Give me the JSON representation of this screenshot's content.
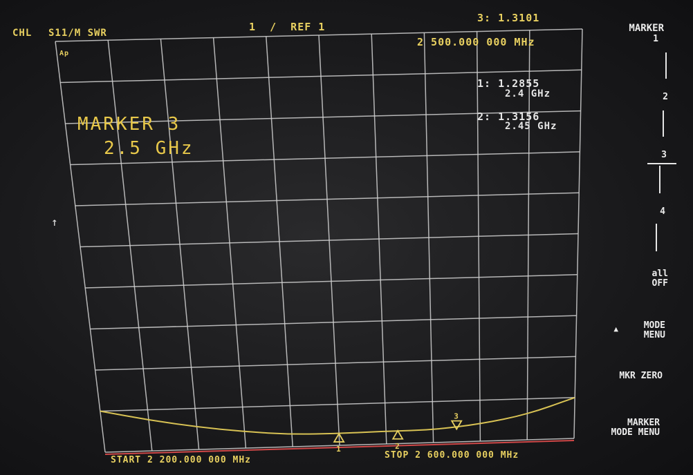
{
  "header": {
    "channel": "CHL",
    "measurement": "S11/M SWR",
    "scale": "1  /  REF 1",
    "ap": "Ap",
    "active_marker": "3: 1.3101",
    "active_marker_freq": "2 500.000 000 MHz"
  },
  "markers_readout": [
    {
      "label": "1: 1.2855",
      "freq": "2.4 GHz"
    },
    {
      "label": "2: 1.3156",
      "freq": "2.45 GHz"
    }
  ],
  "marker_panel": {
    "title": "MARKER 3",
    "value": "2.5 GHz"
  },
  "footer": {
    "start": "START 2 200.000 000 MHz",
    "stop": "STOP 2 600.000 000 MHz"
  },
  "softkeys": {
    "title": "MARKER",
    "keys": [
      "1",
      "2",
      "3",
      "4",
      "all\nOFF",
      "MODE\nMENU",
      "MKR ZERO",
      "MARKER\nMODE MENU"
    ],
    "mode_arrow": "▲"
  },
  "ref_arrow": "↑",
  "marker_flags": [
    "1",
    "2",
    "3"
  ],
  "colors": {
    "trace": "#d8c254",
    "grid": "#d2d2d2",
    "baseline": "#d04848",
    "annotation": "#e8d060"
  },
  "chart_data": {
    "type": "line",
    "xlabel": "",
    "ylabel": "",
    "xlim": [
      2200,
      2600
    ],
    "ylim": [
      1,
      11
    ],
    "grid": true,
    "series": [
      {
        "x": [
          2200,
          2240,
          2280,
          2320,
          2360,
          2400,
          2440,
          2480,
          2520,
          2560,
          2600
        ],
        "values": [
          2.0,
          1.75,
          1.55,
          1.4,
          1.3,
          1.29,
          1.31,
          1.31,
          1.42,
          1.62,
          2.0
        ]
      }
    ],
    "markers": [
      {
        "id": 1,
        "x": 2400,
        "value": 1.2855
      },
      {
        "id": 2,
        "x": 2450,
        "value": 1.3156
      },
      {
        "id": 3,
        "x": 2500,
        "value": 1.3101
      }
    ]
  }
}
